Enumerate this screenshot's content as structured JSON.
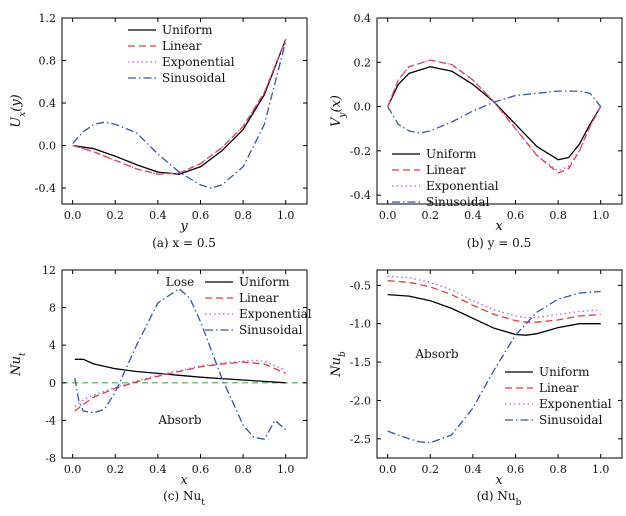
{
  "chart_data": [
    {
      "type": "line",
      "caption": "(a) x = 0.5",
      "xlabel": "y",
      "ylabel": "U_x(y)",
      "xlim": [
        -0.05,
        1.1
      ],
      "ylim": [
        -0.55,
        1.2
      ],
      "xticks": [
        0.0,
        0.2,
        0.4,
        0.6,
        0.8,
        1.0
      ],
      "xtick_labels": [
        "0.0",
        "0.2",
        "0.4",
        "0.6",
        "0.8",
        "1.0"
      ],
      "yticks": [
        -0.4,
        0.0,
        0.4,
        0.8,
        1.2
      ],
      "ytick_labels": [
        "-0.4",
        "0.0",
        "0.4",
        "0.8",
        "1.2"
      ],
      "legend_position": "top-center",
      "annotations": [],
      "series": [
        {
          "name": "Uniform",
          "style": "solid",
          "color": "#000000",
          "x": [
            0,
            0.1,
            0.2,
            0.3,
            0.4,
            0.5,
            0.6,
            0.7,
            0.8,
            0.9,
            1.0
          ],
          "y": [
            0,
            -0.03,
            -0.1,
            -0.18,
            -0.25,
            -0.27,
            -0.2,
            -0.05,
            0.15,
            0.48,
            1.0
          ]
        },
        {
          "name": "Linear",
          "style": "dashed",
          "color": "#e23a3a",
          "x": [
            0,
            0.1,
            0.2,
            0.3,
            0.4,
            0.5,
            0.6,
            0.7,
            0.8,
            0.9,
            1.0
          ],
          "y": [
            0,
            -0.06,
            -0.14,
            -0.22,
            -0.27,
            -0.26,
            -0.17,
            -0.02,
            0.18,
            0.5,
            1.0
          ]
        },
        {
          "name": "Exponential",
          "style": "dotted",
          "color": "#c05bd0",
          "x": [
            0,
            0.1,
            0.2,
            0.3,
            0.4,
            0.5,
            0.6,
            0.7,
            0.8,
            0.9,
            1.0
          ],
          "y": [
            0,
            -0.06,
            -0.14,
            -0.22,
            -0.27,
            -0.26,
            -0.17,
            -0.02,
            0.18,
            0.5,
            1.0
          ]
        },
        {
          "name": "Sinusoidal",
          "style": "dashdot",
          "color": "#3355aa",
          "x": [
            0,
            0.05,
            0.1,
            0.15,
            0.2,
            0.3,
            0.4,
            0.5,
            0.6,
            0.65,
            0.7,
            0.8,
            0.9,
            1.0
          ],
          "y": [
            0.02,
            0.13,
            0.2,
            0.22,
            0.2,
            0.12,
            -0.08,
            -0.25,
            -0.37,
            -0.4,
            -0.37,
            -0.2,
            0.2,
            0.98
          ]
        }
      ]
    },
    {
      "type": "line",
      "caption": "(b) y = 0.5",
      "xlabel": "x",
      "ylabel": "V_y(x)",
      "xlim": [
        -0.05,
        1.1
      ],
      "ylim": [
        -0.44,
        0.4
      ],
      "xticks": [
        0.0,
        0.2,
        0.4,
        0.6,
        0.8,
        1.0
      ],
      "xtick_labels": [
        "0.0",
        "0.2",
        "0.4",
        "0.6",
        "0.8",
        "1.0"
      ],
      "yticks": [
        -0.4,
        -0.2,
        0.0,
        0.2,
        0.4
      ],
      "ytick_labels": [
        "-0.4",
        "-0.2",
        "0.0",
        "0.2",
        "0.4"
      ],
      "legend_position": "bottom-left",
      "annotations": [],
      "series": [
        {
          "name": "Uniform",
          "style": "solid",
          "color": "#000000",
          "x": [
            0,
            0.05,
            0.1,
            0.2,
            0.3,
            0.4,
            0.5,
            0.6,
            0.7,
            0.8,
            0.85,
            0.9,
            0.95,
            1.0
          ],
          "y": [
            0,
            0.1,
            0.15,
            0.18,
            0.16,
            0.1,
            0.02,
            -0.08,
            -0.18,
            -0.24,
            -0.23,
            -0.17,
            -0.08,
            0
          ]
        },
        {
          "name": "Linear",
          "style": "dashed",
          "color": "#e23a3a",
          "x": [
            0,
            0.05,
            0.1,
            0.2,
            0.3,
            0.4,
            0.5,
            0.6,
            0.7,
            0.8,
            0.85,
            0.9,
            0.95,
            1.0
          ],
          "y": [
            0,
            0.12,
            0.18,
            0.21,
            0.19,
            0.12,
            0.02,
            -0.1,
            -0.22,
            -0.3,
            -0.28,
            -0.2,
            -0.09,
            0
          ]
        },
        {
          "name": "Exponential",
          "style": "dotted",
          "color": "#c05bd0",
          "x": [
            0,
            0.05,
            0.1,
            0.2,
            0.3,
            0.4,
            0.5,
            0.6,
            0.7,
            0.8,
            0.85,
            0.9,
            0.95,
            1.0
          ],
          "y": [
            0,
            0.12,
            0.18,
            0.21,
            0.19,
            0.12,
            0.02,
            -0.1,
            -0.22,
            -0.29,
            -0.27,
            -0.2,
            -0.09,
            0
          ]
        },
        {
          "name": "Sinusoidal",
          "style": "dashdot",
          "color": "#3355aa",
          "x": [
            0,
            0.05,
            0.1,
            0.15,
            0.2,
            0.3,
            0.4,
            0.5,
            0.6,
            0.7,
            0.8,
            0.9,
            0.95,
            1.0
          ],
          "y": [
            0,
            -0.08,
            -0.11,
            -0.12,
            -0.11,
            -0.07,
            -0.02,
            0.02,
            0.05,
            0.06,
            0.07,
            0.07,
            0.06,
            0
          ]
        }
      ]
    },
    {
      "type": "line",
      "caption": "(c) Nu_t",
      "xlabel": "x",
      "ylabel": "Nu_t",
      "xlim": [
        -0.05,
        1.1
      ],
      "ylim": [
        -8,
        12
      ],
      "xticks": [
        0.0,
        0.2,
        0.4,
        0.6,
        0.8,
        1.0
      ],
      "xtick_labels": [
        "0.0",
        "0.2",
        "0.4",
        "0.6",
        "0.8",
        "1.0"
      ],
      "yticks": [
        -8,
        -4,
        0,
        4,
        8,
        12
      ],
      "ytick_labels": [
        "-8",
        "-4",
        "0",
        "4",
        "8",
        "12"
      ],
      "legend_position": "top-right",
      "annotations": [
        "Lose",
        "Absorb"
      ],
      "reference_line": {
        "y": 0,
        "color": "#4caf50",
        "style": "dashed"
      },
      "series": [
        {
          "name": "Uniform",
          "style": "solid",
          "color": "#000000",
          "x": [
            0.01,
            0.05,
            0.1,
            0.2,
            0.3,
            0.4,
            0.5,
            0.6,
            0.7,
            0.8,
            0.9,
            1.0
          ],
          "y": [
            2.5,
            2.5,
            2.0,
            1.5,
            1.2,
            1.0,
            0.8,
            0.6,
            0.45,
            0.3,
            0.15,
            0.0
          ]
        },
        {
          "name": "Linear",
          "style": "dashed",
          "color": "#e23a3a",
          "x": [
            0.01,
            0.05,
            0.1,
            0.2,
            0.3,
            0.4,
            0.5,
            0.6,
            0.7,
            0.8,
            0.9,
            0.95,
            1.0
          ],
          "y": [
            -3.0,
            -2.3,
            -1.5,
            -0.6,
            0.1,
            0.7,
            1.2,
            1.7,
            2.0,
            2.2,
            2.0,
            1.5,
            1.0
          ]
        },
        {
          "name": "Exponential",
          "style": "dotted",
          "color": "#c05bd0",
          "x": [
            0.01,
            0.05,
            0.1,
            0.2,
            0.3,
            0.4,
            0.5,
            0.6,
            0.7,
            0.8,
            0.85,
            0.9,
            0.95,
            1.0
          ],
          "y": [
            -2.5,
            -1.8,
            -1.3,
            -0.5,
            0.2,
            0.8,
            1.3,
            1.8,
            2.1,
            2.3,
            2.4,
            2.3,
            1.8,
            1.4
          ]
        },
        {
          "name": "Sinusoidal",
          "style": "dashdot",
          "color": "#3355aa",
          "x": [
            0.01,
            0.03,
            0.05,
            0.1,
            0.15,
            0.2,
            0.3,
            0.4,
            0.5,
            0.55,
            0.6,
            0.7,
            0.8,
            0.85,
            0.9,
            0.95,
            1.0
          ],
          "y": [
            0.5,
            -2.0,
            -3.0,
            -3.2,
            -2.8,
            -1.0,
            4.0,
            8.5,
            10.0,
            9.0,
            6.5,
            0.5,
            -4.5,
            -5.8,
            -6.0,
            -4.0,
            -5.0
          ]
        }
      ]
    },
    {
      "type": "line",
      "caption": "(d) Nu_b",
      "xlabel": "x",
      "ylabel": "Nu_b",
      "xlim": [
        -0.05,
        1.1
      ],
      "ylim": [
        -2.75,
        -0.3
      ],
      "xticks": [
        0.0,
        0.2,
        0.4,
        0.6,
        0.8,
        1.0
      ],
      "xtick_labels": [
        "0.0",
        "0.2",
        "0.4",
        "0.6",
        "0.8",
        "1.0"
      ],
      "yticks": [
        -2.5,
        -2.0,
        -1.5,
        -1.0,
        -0.5
      ],
      "ytick_labels": [
        "-2.5",
        "-2.0",
        "-1.5",
        "-1.0",
        "-0.5"
      ],
      "legend_position": "bottom-right",
      "annotations": [
        "Absorb"
      ],
      "series": [
        {
          "name": "Uniform",
          "style": "solid",
          "color": "#000000",
          "x": [
            0,
            0.1,
            0.2,
            0.3,
            0.4,
            0.5,
            0.6,
            0.65,
            0.7,
            0.8,
            0.9,
            1.0
          ],
          "y": [
            -0.62,
            -0.64,
            -0.7,
            -0.8,
            -0.93,
            -1.06,
            -1.14,
            -1.15,
            -1.13,
            -1.05,
            -1.0,
            -1.0
          ]
        },
        {
          "name": "Linear",
          "style": "dashed",
          "color": "#e23a3a",
          "x": [
            0,
            0.1,
            0.2,
            0.3,
            0.4,
            0.5,
            0.6,
            0.65,
            0.7,
            0.8,
            0.9,
            1.0
          ],
          "y": [
            -0.44,
            -0.46,
            -0.52,
            -0.62,
            -0.76,
            -0.88,
            -0.96,
            -0.98,
            -0.98,
            -0.95,
            -0.9,
            -0.88
          ]
        },
        {
          "name": "Exponential",
          "style": "dotted",
          "color": "#c05bd0",
          "x": [
            0,
            0.1,
            0.2,
            0.3,
            0.4,
            0.5,
            0.6,
            0.65,
            0.7,
            0.8,
            0.9,
            1.0
          ],
          "y": [
            -0.38,
            -0.4,
            -0.46,
            -0.56,
            -0.7,
            -0.82,
            -0.9,
            -0.92,
            -0.92,
            -0.88,
            -0.84,
            -0.82
          ]
        },
        {
          "name": "Sinusoidal",
          "style": "dashdot",
          "color": "#3355aa",
          "x": [
            0,
            0.05,
            0.1,
            0.15,
            0.2,
            0.3,
            0.4,
            0.5,
            0.6,
            0.7,
            0.8,
            0.9,
            1.0
          ],
          "y": [
            -2.4,
            -2.45,
            -2.5,
            -2.54,
            -2.55,
            -2.45,
            -2.1,
            -1.6,
            -1.15,
            -0.85,
            -0.68,
            -0.6,
            -0.58
          ]
        }
      ]
    }
  ]
}
